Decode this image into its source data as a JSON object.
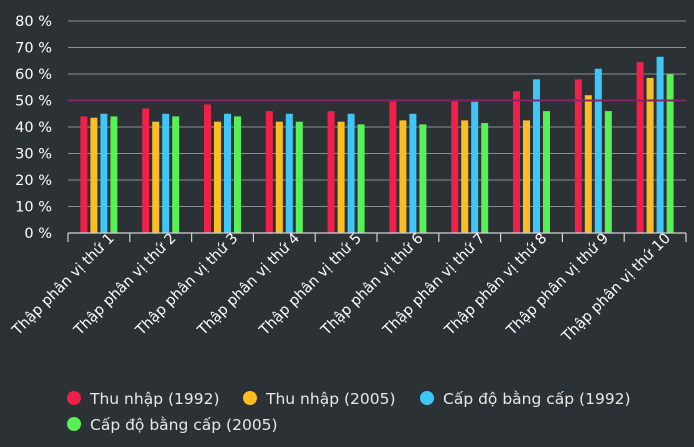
{
  "chart_data": {
    "type": "bar",
    "categories": [
      "Thập phân vị thứ 1",
      "Thập phân vị thứ 2",
      "Thập phân vị thứ 3",
      "Thập phân vị thứ 4",
      "Thập phân vị thứ 5",
      "Thập phân vị thứ 6",
      "Thập phân vị thứ 7",
      "Thập phân vị thứ 8",
      "Thập phân vị thứ 9",
      "Thập phân vị thứ 10"
    ],
    "series": [
      {
        "name": "Thu nhập (1992)",
        "color": "#f0204a",
        "values": [
          44,
          47,
          48.5,
          46,
          46,
          50,
          50,
          53.5,
          58,
          64.5
        ]
      },
      {
        "name": "Thu nhập (2005)",
        "color": "#fbbd22",
        "values": [
          43.5,
          42,
          42,
          42,
          42,
          42.5,
          42.5,
          42.5,
          52,
          58.5
        ]
      },
      {
        "name": "Cấp độ bằng cấp (1992)",
        "color": "#3fc6f8",
        "values": [
          45,
          45,
          45,
          45,
          45,
          45,
          49.5,
          58,
          62,
          66.5
        ]
      },
      {
        "name": "Cấp độ bằng cấp (2005)",
        "color": "#57f155",
        "values": [
          44,
          44,
          44,
          42,
          41,
          41,
          41.5,
          46,
          46,
          60
        ]
      }
    ],
    "y_ticks": [
      "0 %",
      "10 %",
      "20 %",
      "30 %",
      "40 %",
      "50 %",
      "60 %",
      "70 %",
      "80 %"
    ],
    "ylim": [
      0,
      80
    ],
    "reference_line": {
      "value": 50,
      "color": "#8e1f6b"
    },
    "grid": true,
    "gridline_color": "#8a9094",
    "legend_position": "bottom-left",
    "title": "",
    "xlabel": "",
    "ylabel": ""
  }
}
